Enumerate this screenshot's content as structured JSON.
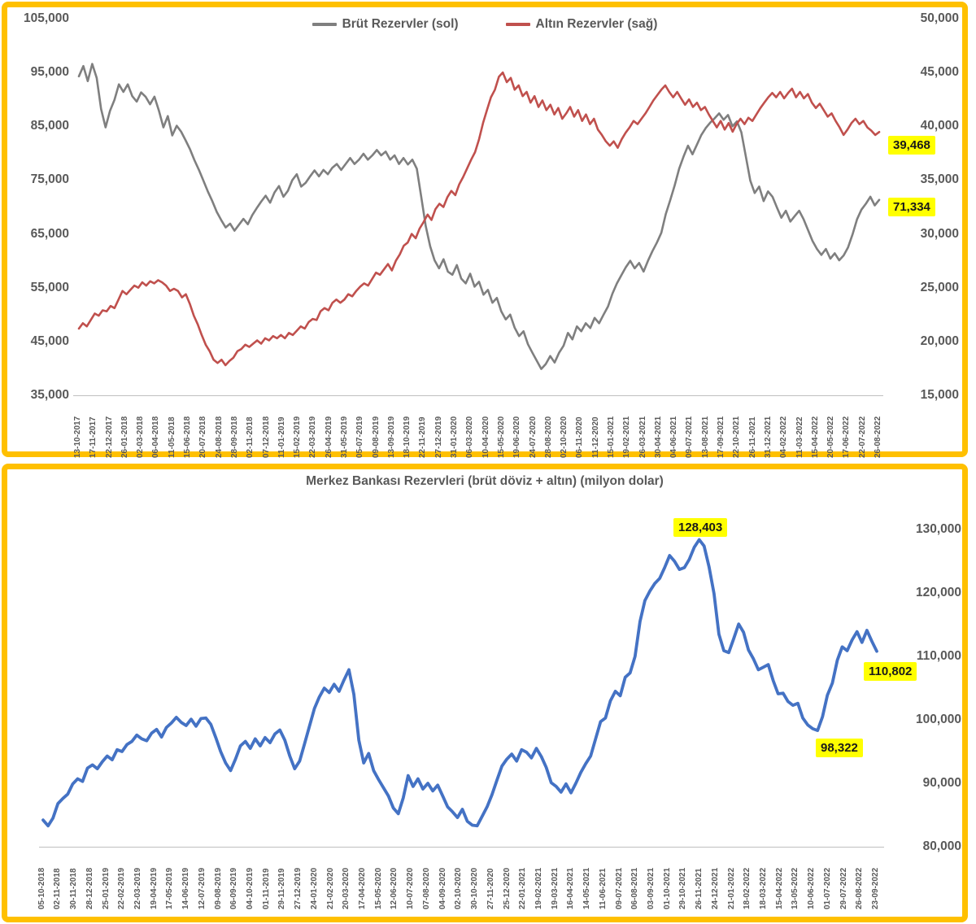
{
  "chart_data": [
    {
      "type": "line",
      "title": "",
      "legend_position": "top",
      "legend": [
        {
          "label": "Brüt Rezervler (sol)",
          "color": "#7F7F7F"
        },
        {
          "label": "Altın Rezervler (sağ)",
          "color": "#C0504D"
        }
      ],
      "left_axis": {
        "labels": [
          "105,000",
          "95,000",
          "85,000",
          "75,000",
          "65,000",
          "55,000",
          "45,000",
          "35,000"
        ],
        "max": 105000,
        "min": 35000
      },
      "right_axis": {
        "labels": [
          "50,000",
          "45,000",
          "40,000",
          "35,000",
          "30,000",
          "25,000",
          "20,000",
          "15,000"
        ],
        "max": 50000,
        "min": 15000
      },
      "x_labels": [
        "13-10-2017",
        "17-11-2017",
        "22-12-2017",
        "26-01-2018",
        "02-03-2018",
        "06-04-2018",
        "11-05-2018",
        "15-06-2018",
        "20-07-2018",
        "24-08-2018",
        "28-09-2018",
        "02-11-2018",
        "07-12-2018",
        "11-01-2019",
        "15-02-2019",
        "22-03-2019",
        "26-04-2019",
        "31-05-2019",
        "05-07-2019",
        "09-08-2019",
        "13-09-2019",
        "18-10-2019",
        "22-11-2019",
        "27-12-2019",
        "31-01-2020",
        "06-03-2020",
        "10-04-2020",
        "15-05-2020",
        "19-06-2020",
        "24-07-2020",
        "28-08-2020",
        "02-10-2020",
        "06-11-2020",
        "11-12-2020",
        "15-01-2021",
        "19-02-2021",
        "26-03-2021",
        "30-04-2021",
        "04-06-2021",
        "09-07-2021",
        "13-08-2021",
        "17-09-2021",
        "22-10-2021",
        "26-11-2021",
        "31-12-2021",
        "04-02-2022",
        "11-03-2022",
        "15-04-2022",
        "20-05-2022",
        "17-06-2022",
        "22-07-2022",
        "26-08-2022"
      ],
      "series": [
        {
          "name": "Brüt Rezervler (sol)",
          "axis": "left",
          "color": "#7F7F7F",
          "width": 2.6,
          "values": [
            94300,
            96200,
            93400,
            96600,
            94000,
            88200,
            84800,
            87900,
            89900,
            92800,
            91400,
            92800,
            90600,
            89600,
            91300,
            90500,
            89100,
            90500,
            87900,
            84800,
            86900,
            83300,
            85100,
            84000,
            82400,
            80700,
            78700,
            76900,
            74900,
            72900,
            71100,
            69100,
            67600,
            66200,
            66900,
            65600,
            66700,
            67800,
            66800,
            68500,
            69800,
            71000,
            72100,
            70800,
            72700,
            73900,
            71900,
            73000,
            75000,
            76100,
            73800,
            74500,
            75700,
            76800,
            75700,
            76900,
            76100,
            77300,
            78000,
            76900,
            78000,
            79100,
            78000,
            78800,
            79900,
            78800,
            79600,
            80600,
            79600,
            80300,
            78800,
            79600,
            78000,
            79100,
            77900,
            78800,
            77100,
            71900,
            66500,
            62700,
            60100,
            58600,
            60300,
            58000,
            57400,
            59200,
            56700,
            55800,
            57600,
            55200,
            56100,
            53700,
            54600,
            52200,
            53100,
            50600,
            49100,
            50000,
            47600,
            46000,
            46900,
            44500,
            42900,
            41400,
            39900,
            40800,
            42300,
            41100,
            42900,
            44200,
            46600,
            45400,
            47800,
            46900,
            48400,
            47500,
            49400,
            48400,
            50000,
            51500,
            53900,
            55800,
            57300,
            58800,
            60000,
            58600,
            59600,
            58000,
            60000,
            61800,
            63400,
            65200,
            68700,
            71300,
            74000,
            77100,
            79400,
            81400,
            79800,
            81600,
            83400,
            84700,
            85700,
            86500,
            87400,
            86200,
            87100,
            85000,
            85900,
            83900,
            79400,
            74900,
            72600,
            73800,
            71100,
            72900,
            71900,
            69900,
            68000,
            69300,
            67300,
            68300,
            69300,
            67700,
            65700,
            63700,
            62200,
            61100,
            62200,
            60400,
            61400,
            60100,
            61000,
            62500,
            64900,
            67700,
            69500,
            70600,
            71900,
            70300,
            71334
          ]
        },
        {
          "name": "Altın Rezervler (sağ)",
          "axis": "right",
          "color": "#C0504D",
          "width": 2.6,
          "values": [
            21200,
            21700,
            21400,
            22000,
            22600,
            22400,
            22900,
            22800,
            23300,
            23100,
            23900,
            24700,
            24400,
            24800,
            25200,
            25000,
            25500,
            25200,
            25600,
            25400,
            25700,
            25500,
            25200,
            24700,
            24900,
            24700,
            24100,
            24400,
            23500,
            22400,
            21600,
            20600,
            19700,
            19100,
            18300,
            18000,
            18300,
            17800,
            18200,
            18500,
            19100,
            19300,
            19700,
            19500,
            19800,
            20100,
            19800,
            20300,
            20100,
            20500,
            20300,
            20600,
            20300,
            20800,
            20600,
            21000,
            21400,
            21200,
            21800,
            22100,
            22000,
            22800,
            23100,
            22900,
            23600,
            23900,
            23600,
            23900,
            24400,
            24200,
            24700,
            25100,
            25400,
            25200,
            25800,
            26400,
            26200,
            26700,
            27200,
            26600,
            27500,
            28100,
            28900,
            29200,
            30000,
            29600,
            30500,
            31100,
            31800,
            31300,
            32300,
            32800,
            32500,
            33400,
            34000,
            33600,
            34600,
            35300,
            36100,
            36900,
            37600,
            38800,
            40300,
            41500,
            42700,
            43400,
            44600,
            45000,
            44100,
            44500,
            43400,
            43800,
            42800,
            43200,
            42200,
            42800,
            41800,
            42400,
            41500,
            42000,
            41100,
            41700,
            40700,
            41200,
            41800,
            40900,
            41500,
            40500,
            41100,
            40200,
            40700,
            39700,
            39200,
            38600,
            38200,
            38600,
            38000,
            38800,
            39400,
            39900,
            40500,
            40200,
            40700,
            41200,
            41800,
            42400,
            42900,
            43400,
            43800,
            43200,
            42700,
            43200,
            42600,
            42000,
            42500,
            41800,
            42200,
            41500,
            41800,
            41100,
            40500,
            39900,
            40500,
            39700,
            40300,
            39500,
            40200,
            40700,
            40200,
            40800,
            40500,
            41100,
            41700,
            42200,
            42700,
            43100,
            42700,
            43200,
            42600,
            43100,
            43500,
            42700,
            43200,
            42600,
            43000,
            42200,
            41700,
            42100,
            41500,
            40900,
            41200,
            40500,
            39900,
            39200,
            39700,
            40300,
            40700,
            40200,
            40500,
            39900,
            39600,
            39200,
            39468
          ]
        }
      ],
      "annotations": [
        {
          "text": "39,468",
          "series": "Altın Rezervler (sağ)"
        },
        {
          "text": "71,334",
          "series": "Brüt Rezervler (sol)"
        }
      ]
    },
    {
      "type": "line",
      "title": "Merkez Bankası Rezervleri (brüt döviz + altın) (milyon dolar)",
      "right_axis": {
        "labels": [
          "130,000",
          "120,000",
          "110,000",
          "100,000",
          "90,000",
          "80,000"
        ],
        "max": 130000,
        "min": 80000
      },
      "x_labels": [
        "05-10-2018",
        "02-11-2018",
        "30-11-2018",
        "28-12-2018",
        "25-01-2019",
        "22-02-2019",
        "22-03-2019",
        "19-04-2019",
        "17-05-2019",
        "14-06-2019",
        "12-07-2019",
        "09-08-2019",
        "06-09-2019",
        "04-10-2019",
        "01-11-2019",
        "29-11-2019",
        "27-12-2019",
        "24-01-2020",
        "21-02-2020",
        "20-03-2020",
        "17-04-2020",
        "15-05-2020",
        "12-06-2020",
        "10-07-2020",
        "07-08-2020",
        "04-09-2020",
        "02-10-2020",
        "30-10-2020",
        "27-11-2020",
        "25-12-2020",
        "22-01-2021",
        "19-02-2021",
        "19-03-2021",
        "16-04-2021",
        "14-05-2021",
        "11-06-2021",
        "09-07-2021",
        "06-08-2021",
        "03-09-2021",
        "01-10-2021",
        "29-10-2021",
        "26-11-2021",
        "24-12-2021",
        "21-01-2022",
        "18-02-2022",
        "18-03-2022",
        "15-04-2022",
        "13-05-2022",
        "10-06-2022",
        "01-07-2022",
        "29-07-2022",
        "26-08-2022",
        "23-09-2022"
      ],
      "series": [
        {
          "name": "Merkez Bankası Rezervleri",
          "axis": "right",
          "color": "#4472C4",
          "width": 3.8,
          "values": [
            84200,
            83300,
            84500,
            86800,
            87600,
            88300,
            89900,
            90700,
            90300,
            92400,
            92900,
            92300,
            93400,
            94300,
            93700,
            95300,
            95000,
            96100,
            96600,
            97600,
            97000,
            96700,
            97900,
            98500,
            97300,
            98800,
            99500,
            100400,
            99600,
            99100,
            100100,
            99000,
            100200,
            100300,
            99300,
            97200,
            95000,
            93200,
            92000,
            93800,
            95900,
            96600,
            95500,
            97000,
            95900,
            97200,
            96400,
            97800,
            98400,
            96800,
            94300,
            92300,
            93500,
            96200,
            99000,
            101800,
            103600,
            105000,
            104300,
            105600,
            104500,
            106300,
            107900,
            104000,
            96800,
            93200,
            94700,
            92000,
            90600,
            89300,
            88000,
            86100,
            85200,
            87700,
            91200,
            89500,
            90700,
            89100,
            90000,
            88800,
            89700,
            88000,
            86300,
            85500,
            84600,
            85900,
            84000,
            83400,
            83300,
            84800,
            86300,
            88200,
            90500,
            92700,
            93800,
            94600,
            93500,
            95300,
            94900,
            94000,
            95500,
            94200,
            92500,
            90100,
            89500,
            88600,
            89900,
            88500,
            90000,
            91700,
            93100,
            94300,
            97000,
            99700,
            100300,
            103000,
            104500,
            103800,
            106700,
            107400,
            110000,
            115500,
            118800,
            120300,
            121500,
            122300,
            124000,
            125900,
            125000,
            123700,
            124000,
            125300,
            127200,
            128403,
            127400,
            124100,
            119900,
            113500,
            110900,
            110600,
            112800,
            115100,
            113800,
            111000,
            109600,
            107900,
            108300,
            108700,
            106200,
            104100,
            104200,
            102900,
            102300,
            102600,
            100300,
            99200,
            98600,
            98322,
            100500,
            103900,
            105800,
            109400,
            111500,
            110900,
            112600,
            113900,
            112200,
            114100,
            112400,
            110802
          ]
        }
      ],
      "annotations": [
        {
          "text": "128,403",
          "series": "Merkez Bankası Rezervleri"
        },
        {
          "text": "110,802",
          "series": "Merkez Bankası Rezervleri"
        },
        {
          "text": "98,322",
          "series": "Merkez Bankası Rezervleri"
        }
      ]
    }
  ]
}
